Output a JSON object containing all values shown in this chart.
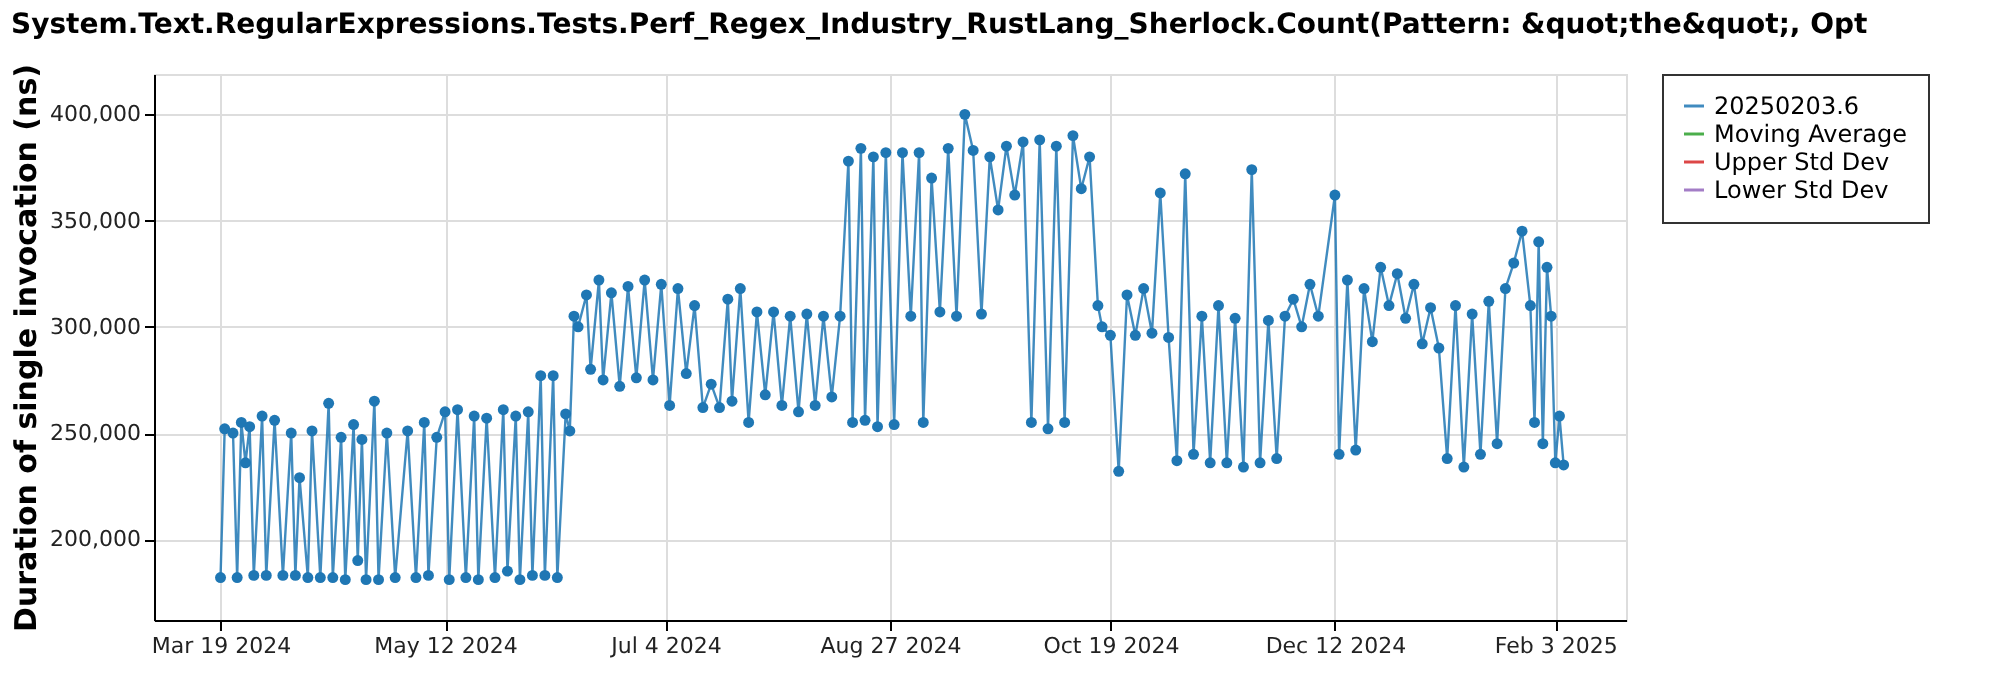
{
  "chart_data": {
    "type": "line",
    "title": "System.Text.RegularExpressions.Tests.Perf_Regex_Industry_RustLang_Sherlock.Count(Pattern: &quot;the&quot;, Opt",
    "ylabel": "Duration of single invocation (ns)",
    "x": [
      "2024-03-19",
      "2024-03-20",
      "2024-03-22",
      "2024-03-23",
      "2024-03-24",
      "2024-03-25",
      "2024-03-26",
      "2024-03-27",
      "2024-03-29",
      "2024-03-30",
      "2024-04-01",
      "2024-04-03",
      "2024-04-05",
      "2024-04-06",
      "2024-04-07",
      "2024-04-09",
      "2024-04-10",
      "2024-04-12",
      "2024-04-14",
      "2024-04-15",
      "2024-04-17",
      "2024-04-18",
      "2024-04-20",
      "2024-04-21",
      "2024-04-22",
      "2024-04-23",
      "2024-04-25",
      "2024-04-26",
      "2024-04-28",
      "2024-04-30",
      "2024-05-03",
      "2024-05-05",
      "2024-05-07",
      "2024-05-08",
      "2024-05-10",
      "2024-05-12",
      "2024-05-13",
      "2024-05-15",
      "2024-05-17",
      "2024-05-19",
      "2024-05-20",
      "2024-05-22",
      "2024-05-24",
      "2024-05-26",
      "2024-05-27",
      "2024-05-29",
      "2024-05-30",
      "2024-06-01",
      "2024-06-02",
      "2024-06-04",
      "2024-06-05",
      "2024-06-07",
      "2024-06-08",
      "2024-06-10",
      "2024-06-11",
      "2024-06-12",
      "2024-06-13",
      "2024-06-15",
      "2024-06-16",
      "2024-06-18",
      "2024-06-19",
      "2024-06-21",
      "2024-06-23",
      "2024-06-25",
      "2024-06-27",
      "2024-06-29",
      "2024-07-01",
      "2024-07-03",
      "2024-07-05",
      "2024-07-07",
      "2024-07-09",
      "2024-07-11",
      "2024-07-13",
      "2024-07-15",
      "2024-07-17",
      "2024-07-19",
      "2024-07-20",
      "2024-07-22",
      "2024-07-24",
      "2024-07-26",
      "2024-07-28",
      "2024-07-30",
      "2024-08-01",
      "2024-08-03",
      "2024-08-05",
      "2024-08-07",
      "2024-08-09",
      "2024-08-11",
      "2024-08-13",
      "2024-08-15",
      "2024-08-17",
      "2024-08-18",
      "2024-08-20",
      "2024-08-21",
      "2024-08-23",
      "2024-08-24",
      "2024-08-26",
      "2024-08-28",
      "2024-08-30",
      "2024-09-01",
      "2024-09-03",
      "2024-09-04",
      "2024-09-06",
      "2024-09-08",
      "2024-09-10",
      "2024-09-12",
      "2024-09-14",
      "2024-09-16",
      "2024-09-18",
      "2024-09-20",
      "2024-09-22",
      "2024-09-24",
      "2024-09-26",
      "2024-09-28",
      "2024-09-30",
      "2024-10-02",
      "2024-10-04",
      "2024-10-06",
      "2024-10-08",
      "2024-10-10",
      "2024-10-12",
      "2024-10-14",
      "2024-10-16",
      "2024-10-17",
      "2024-10-19",
      "2024-10-21",
      "2024-10-23",
      "2024-10-25",
      "2024-10-27",
      "2024-10-29",
      "2024-10-31",
      "2024-11-02",
      "2024-11-04",
      "2024-11-06",
      "2024-11-08",
      "2024-11-10",
      "2024-11-12",
      "2024-11-14",
      "2024-11-16",
      "2024-11-18",
      "2024-11-20",
      "2024-11-22",
      "2024-11-24",
      "2024-11-26",
      "2024-11-28",
      "2024-11-30",
      "2024-12-02",
      "2024-12-04",
      "2024-12-06",
      "2024-12-08",
      "2024-12-12",
      "2024-12-13",
      "2024-12-15",
      "2024-12-17",
      "2024-12-19",
      "2024-12-21",
      "2024-12-23",
      "2024-12-25",
      "2024-12-27",
      "2024-12-29",
      "2024-12-31",
      "2025-01-02",
      "2025-01-04",
      "2025-01-06",
      "2025-01-08",
      "2025-01-10",
      "2025-01-12",
      "2025-01-14",
      "2025-01-16",
      "2025-01-18",
      "2025-01-20",
      "2025-01-22",
      "2025-01-24",
      "2025-01-26",
      "2025-01-28",
      "2025-01-29",
      "2025-01-30",
      "2025-01-31",
      "2025-02-01",
      "2025-02-02",
      "2025-02-03",
      "2025-02-04",
      "2025-02-05"
    ],
    "series": [
      {
        "name": "20250203.6",
        "color": "#1f77b4",
        "values": [
          182000,
          252000,
          250000,
          182000,
          255000,
          236000,
          253000,
          183000,
          258000,
          183000,
          256000,
          183000,
          250000,
          183000,
          229000,
          182000,
          251000,
          182000,
          264000,
          182000,
          248000,
          181000,
          254000,
          190000,
          247000,
          181000,
          265000,
          181000,
          250000,
          182000,
          251000,
          182000,
          255000,
          183000,
          248000,
          260000,
          181000,
          261000,
          182000,
          258000,
          181000,
          257000,
          182000,
          261000,
          185000,
          258000,
          181000,
          260000,
          183000,
          277000,
          183000,
          277000,
          182000,
          259000,
          251000,
          305000,
          300000,
          315000,
          280000,
          322000,
          275000,
          316000,
          272000,
          319000,
          276000,
          322000,
          275000,
          320000,
          263000,
          318000,
          278000,
          310000,
          262000,
          273000,
          262000,
          313000,
          265000,
          318000,
          255000,
          307000,
          268000,
          307000,
          263000,
          305000,
          260000,
          306000,
          263000,
          305000,
          267000,
          305000,
          378000,
          255000,
          384000,
          256000,
          380000,
          253000,
          382000,
          254000,
          382000,
          305000,
          382000,
          255000,
          370000,
          307000,
          384000,
          305000,
          400000,
          383000,
          306000,
          380000,
          355000,
          385000,
          362000,
          387000,
          255000,
          388000,
          252000,
          385000,
          255000,
          390000,
          365000,
          380000,
          310000,
          300000,
          296000,
          232000,
          315000,
          296000,
          318000,
          297000,
          363000,
          295000,
          237000,
          372000,
          240000,
          305000,
          236000,
          310000,
          236000,
          304000,
          234000,
          374000,
          236000,
          303000,
          238000,
          305000,
          313000,
          300000,
          320000,
          305000,
          362000,
          240000,
          322000,
          242000,
          318000,
          293000,
          328000,
          310000,
          325000,
          304000,
          320000,
          292000,
          309000,
          290000,
          238000,
          310000,
          234000,
          306000,
          240000,
          312000,
          245000,
          318000,
          330000,
          345000,
          310000,
          255000,
          340000,
          245000,
          328000,
          305000,
          236000,
          258000,
          235000
        ]
      },
      {
        "name": "Moving Average",
        "color": "#2ca02c",
        "values": [
          null,
          null,
          null,
          null,
          null,
          null,
          null,
          null,
          null,
          null,
          null,
          null,
          null,
          null,
          null,
          null,
          null,
          null,
          null,
          null,
          null,
          null,
          null,
          null,
          null,
          null,
          null,
          null,
          null,
          null,
          null,
          null,
          null,
          null,
          null,
          null,
          null,
          null,
          null,
          null,
          null,
          null,
          null,
          null,
          null,
          null,
          null,
          null,
          null,
          null,
          null,
          null,
          null,
          null,
          null,
          null,
          null,
          null,
          null,
          null,
          null,
          null,
          null,
          null,
          null,
          null,
          null,
          null,
          null,
          null,
          null,
          null,
          null,
          null,
          null,
          null,
          null,
          null,
          null,
          null,
          null,
          null,
          null,
          null,
          null,
          null,
          null,
          null,
          null,
          null,
          null,
          null,
          null,
          null,
          null,
          null,
          null,
          null,
          null,
          null,
          null,
          null,
          null,
          null,
          null,
          null,
          null,
          null,
          null,
          null,
          null,
          null,
          null,
          null,
          null,
          null,
          null,
          null,
          null,
          null,
          null,
          null,
          null,
          null,
          null,
          null,
          null,
          null,
          null,
          null,
          null,
          null,
          null,
          null,
          null,
          null,
          null,
          null,
          null,
          null,
          null,
          null,
          null,
          null,
          null,
          null,
          null,
          null,
          null,
          null,
          null,
          null,
          null,
          null,
          null,
          null,
          null,
          null,
          null,
          null,
          null,
          null,
          null,
          null,
          null,
          null,
          null,
          null,
          null,
          null,
          null,
          null,
          null,
          null,
          null,
          null,
          null,
          null,
          null,
          null,
          null,
          null,
          null
        ]
      },
      {
        "name": "Upper Std Dev",
        "color": "#d62728",
        "values": [
          null,
          null,
          null,
          null,
          null,
          null,
          null,
          null,
          null,
          null,
          null,
          null,
          null,
          null,
          null,
          null,
          null,
          null,
          null,
          null,
          null,
          null,
          null,
          null,
          null,
          null,
          null,
          null,
          null,
          null,
          null,
          null,
          null,
          null,
          null,
          null,
          null,
          null,
          null,
          null,
          null,
          null,
          null,
          null,
          null,
          null,
          null,
          null,
          null,
          null,
          null,
          null,
          null,
          null,
          null,
          null,
          null,
          null,
          null,
          null,
          null,
          null,
          null,
          null,
          null,
          null,
          null,
          null,
          null,
          null,
          null,
          null,
          null,
          null,
          null,
          null,
          null,
          null,
          null,
          null,
          null,
          null,
          null,
          null,
          null,
          null,
          null,
          null,
          null,
          null,
          null,
          null,
          null,
          null,
          null,
          null,
          null,
          null,
          null,
          null,
          null,
          null,
          null,
          null,
          null,
          null,
          null,
          null,
          null,
          null,
          null,
          null,
          null,
          null,
          null,
          null,
          null,
          null,
          null,
          null,
          null,
          null,
          null,
          null,
          null,
          null,
          null,
          null,
          null,
          null,
          null,
          null,
          null,
          null,
          null,
          null,
          null,
          null,
          null,
          null,
          null,
          null,
          null,
          null,
          null,
          null,
          null,
          null,
          null,
          null,
          null,
          null,
          null,
          null,
          null,
          null,
          null,
          null,
          null,
          null,
          null,
          null,
          null,
          null,
          null,
          null,
          null,
          null,
          null,
          null,
          null,
          null,
          null,
          null,
          null,
          null,
          null,
          null,
          null,
          null,
          null,
          null,
          null
        ]
      },
      {
        "name": "Lower Std Dev",
        "color": "#9467bd",
        "values": [
          null,
          null,
          null,
          null,
          null,
          null,
          null,
          null,
          null,
          null,
          null,
          null,
          null,
          null,
          null,
          null,
          null,
          null,
          null,
          null,
          null,
          null,
          null,
          null,
          null,
          null,
          null,
          null,
          null,
          null,
          null,
          null,
          null,
          null,
          null,
          null,
          null,
          null,
          null,
          null,
          null,
          null,
          null,
          null,
          null,
          null,
          null,
          null,
          null,
          null,
          null,
          null,
          null,
          null,
          null,
          null,
          null,
          null,
          null,
          null,
          null,
          null,
          null,
          null,
          null,
          null,
          null,
          null,
          null,
          null,
          null,
          null,
          null,
          null,
          null,
          null,
          null,
          null,
          null,
          null,
          null,
          null,
          null,
          null,
          null,
          null,
          null,
          null,
          null,
          null,
          null,
          null,
          null,
          null,
          null,
          null,
          null,
          null,
          null,
          null,
          null,
          null,
          null,
          null,
          null,
          null,
          null,
          null,
          null,
          null,
          null,
          null,
          null,
          null,
          null,
          null,
          null,
          null,
          null,
          null,
          null,
          null,
          null,
          null,
          null,
          null,
          null,
          null,
          null,
          null,
          null,
          null,
          null,
          null,
          null,
          null,
          null,
          null,
          null,
          null,
          null,
          null,
          null,
          null,
          null,
          null,
          null,
          null,
          null,
          null,
          null,
          null,
          null,
          null,
          null,
          null,
          null,
          null,
          null,
          null,
          null,
          null,
          null,
          null,
          null,
          null,
          null,
          null,
          null,
          null,
          null,
          null,
          null,
          null,
          null,
          null,
          null,
          null,
          null,
          null,
          null,
          null,
          null
        ]
      }
    ],
    "xlim": [
      "2024-03-03",
      "2025-02-20"
    ],
    "xticks": [
      {
        "value": "2024-03-19",
        "label": "Mar 19 2024"
      },
      {
        "value": "2024-05-12",
        "label": "May 12 2024"
      },
      {
        "value": "2024-07-04",
        "label": "Jul 4 2024"
      },
      {
        "value": "2024-08-27",
        "label": "Aug 27 2024"
      },
      {
        "value": "2024-10-19",
        "label": "Oct 19 2024"
      },
      {
        "value": "2024-12-12",
        "label": "Dec 12 2024"
      },
      {
        "value": "2025-02-03",
        "label": "Feb 3 2025"
      }
    ],
    "ylim": [
      162000,
      419000
    ],
    "yticks": [
      {
        "value": 200000,
        "label": "200,000"
      },
      {
        "value": 250000,
        "label": "250,000"
      },
      {
        "value": 300000,
        "label": "300,000"
      },
      {
        "value": 350000,
        "label": "350,000"
      },
      {
        "value": 400000,
        "label": "400,000"
      }
    ],
    "grid": true,
    "legend": "right",
    "marker": "circle",
    "line_style": "solid"
  }
}
